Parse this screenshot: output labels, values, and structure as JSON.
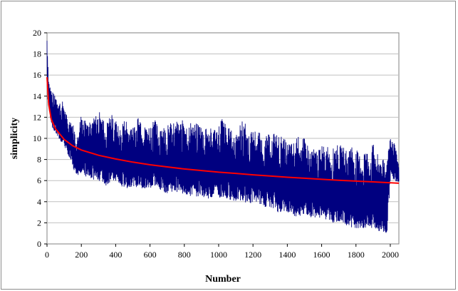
{
  "chart_data": {
    "type": "line",
    "title": "",
    "xlabel": "Number",
    "ylabel": "simplicity",
    "xlim": [
      0,
      2050
    ],
    "ylim": [
      0,
      20
    ],
    "xticks": [
      0,
      200,
      400,
      600,
      800,
      1000,
      1200,
      1400,
      1600,
      1800,
      2000
    ],
    "yticks": [
      0,
      2,
      4,
      6,
      8,
      10,
      12,
      14,
      16,
      18,
      20
    ],
    "grid": "horizontal",
    "legend": "none",
    "series": [
      {
        "color": "#000080",
        "style": "oscillating line (sawtooth clusters)",
        "x": [
          0,
          5,
          10,
          30,
          60,
          90,
          120,
          150,
          180,
          200,
          230,
          260,
          300,
          340,
          380,
          420,
          460,
          500,
          540,
          580,
          620,
          660,
          700,
          740,
          780,
          820,
          860,
          900,
          940,
          980,
          1020,
          1060,
          1100,
          1140,
          1180,
          1220,
          1260,
          1300,
          1340,
          1380,
          1420,
          1460,
          1500,
          1540,
          1580,
          1620,
          1660,
          1700,
          1740,
          1780,
          1820,
          1860,
          1900,
          1940,
          1980,
          2000,
          2020,
          2050
        ],
        "y_max": [
          19.5,
          17.5,
          15.5,
          14.5,
          13.8,
          13.5,
          12.0,
          11.5,
          10.0,
          13.0,
          12.0,
          11.5,
          12.8,
          11.5,
          12.5,
          11.0,
          12.0,
          11.0,
          12.5,
          11.0,
          12.0,
          11.0,
          11.5,
          11.5,
          11.8,
          11.5,
          11.5,
          11.3,
          11.0,
          11.0,
          12.0,
          11.0,
          10.5,
          12.0,
          10.5,
          11.0,
          10.0,
          10.5,
          10.5,
          10.0,
          9.5,
          10.2,
          10.0,
          9.0,
          9.0,
          9.5,
          9.0,
          9.5,
          9.0,
          9.5,
          8.5,
          8.8,
          9.5,
          8.0,
          8.0,
          10.5,
          10.0,
          7.5
        ],
        "y_min": [
          14.0,
          13.0,
          12.5,
          11.0,
          10.0,
          9.5,
          8.5,
          7.0,
          6.5,
          6.8,
          6.2,
          6.0,
          6.0,
          5.5,
          6.0,
          5.5,
          5.2,
          5.5,
          5.2,
          5.0,
          5.5,
          5.0,
          4.8,
          5.0,
          4.8,
          4.5,
          4.5,
          4.5,
          4.3,
          4.5,
          4.2,
          4.2,
          4.0,
          4.0,
          3.8,
          4.0,
          3.5,
          3.5,
          3.0,
          3.0,
          2.8,
          2.5,
          2.8,
          2.5,
          2.5,
          2.3,
          2.0,
          2.0,
          1.8,
          1.5,
          1.5,
          1.3,
          1.5,
          1.0,
          1.0,
          6.5,
          6.0,
          5.8
        ]
      },
      {
        "color": "#ff0000",
        "style": "smooth fitted curve",
        "x": [
          0,
          10,
          25,
          50,
          100,
          150,
          200,
          300,
          400,
          500,
          600,
          700,
          800,
          900,
          1000,
          1100,
          1200,
          1300,
          1400,
          1500,
          1600,
          1700,
          1800,
          1900,
          2000,
          2050
        ],
        "y": [
          15.8,
          13.2,
          11.8,
          10.9,
          9.9,
          9.3,
          8.9,
          8.4,
          8.05,
          7.75,
          7.5,
          7.3,
          7.1,
          6.95,
          6.8,
          6.68,
          6.55,
          6.43,
          6.32,
          6.22,
          6.12,
          6.03,
          5.95,
          5.88,
          5.8,
          5.75
        ]
      }
    ]
  }
}
